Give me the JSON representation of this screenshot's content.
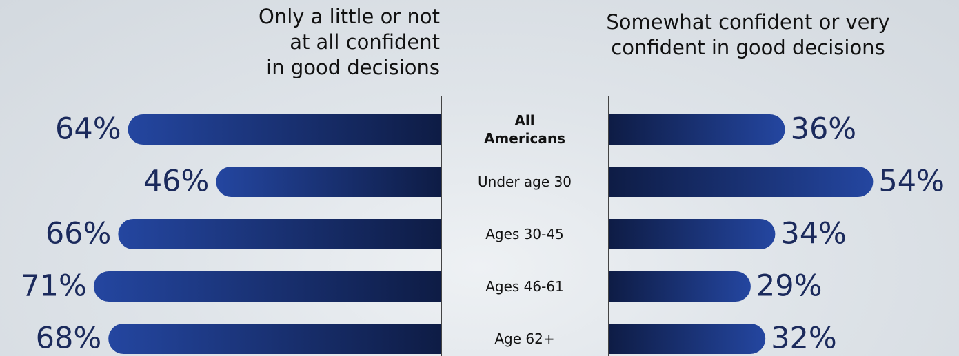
{
  "chart_data": {
    "type": "bar",
    "orientation": "diverging",
    "categories": [
      "All Americans",
      "Under age 30",
      "Ages 30-45",
      "Ages 46-61",
      "Age 62+"
    ],
    "series": [
      {
        "name": "Only a little or not\nat all confident\nin good decisions",
        "color": "#2446a0",
        "side": "left",
        "values": [
          64,
          46,
          66,
          71,
          68
        ],
        "value_labels": [
          "64%",
          "46%",
          "66%",
          "71%",
          "68%"
        ]
      },
      {
        "name": "Somewhat confident or very\nconfident in good decisions",
        "color": "#2446a0",
        "side": "right",
        "values": [
          36,
          54,
          34,
          29,
          32
        ],
        "value_labels": [
          "36%",
          "54%",
          "34%",
          "29%",
          "32%"
        ]
      }
    ]
  }
}
